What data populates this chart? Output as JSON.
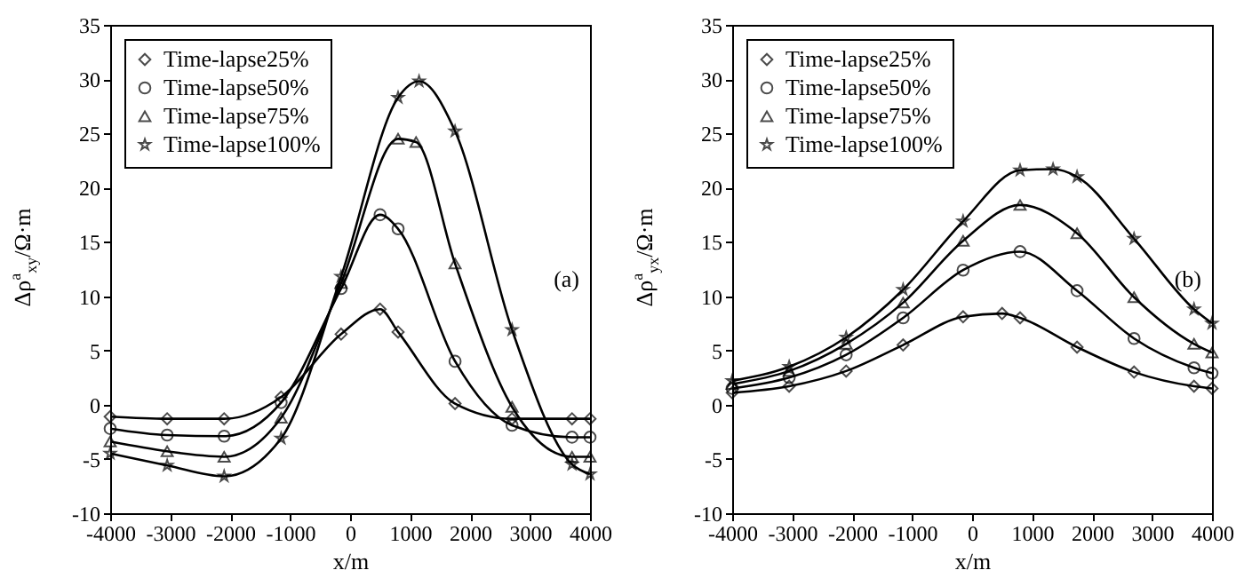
{
  "chart_data": [
    {
      "type": "line",
      "xlabel": "x/m",
      "ylabel": "Δρ$^{a}$$_{xy}$/Ω·m",
      "annotations": [
        "(a)"
      ],
      "xlim": [
        -4000,
        4000
      ],
      "xticks": [
        -4000,
        -3000,
        -2000,
        -1000,
        0,
        1000,
        2000,
        3000,
        4000
      ],
      "ylim": [
        -10,
        35
      ],
      "yticks": [
        -10,
        -5,
        0,
        5,
        10,
        15,
        20,
        25,
        30,
        35
      ],
      "grid": false,
      "legend": "top left",
      "line_style": "solid",
      "series": [
        {
          "name": "Time-lapse25%",
          "color": "#000000",
          "marker": "diamond",
          "x": [
            -4000,
            -3050,
            -2100,
            -1150,
            -150,
            500,
            800,
            1750,
            2700,
            3700,
            4000
          ],
          "values": [
            -1.1,
            -1.3,
            -1.3,
            0.7,
            6.5,
            8.8,
            6.7,
            0.1,
            -1.3,
            -1.3,
            -1.3
          ]
        },
        {
          "name": "Time-lapse50%",
          "color": "#000000",
          "marker": "circle",
          "x": [
            -4000,
            -3050,
            -2100,
            -1150,
            -150,
            500,
            800,
            1750,
            2700,
            3700,
            4000
          ],
          "values": [
            -2.2,
            -2.8,
            -2.9,
            0.2,
            10.7,
            17.5,
            16.2,
            4.0,
            -1.9,
            -3.0,
            -3.0
          ]
        },
        {
          "name": "Time-lapse75%",
          "color": "#000000",
          "marker": "triangle",
          "x": [
            -4000,
            -3050,
            -2100,
            -1150,
            -150,
            800,
            1100,
            1750,
            2700,
            3700,
            4000
          ],
          "values": [
            -3.4,
            -4.3,
            -4.8,
            -1.2,
            11.2,
            24.5,
            24.2,
            13.0,
            -0.2,
            -4.8,
            -4.8
          ]
        },
        {
          "name": "Time-lapse100%",
          "color": "#000000",
          "marker": "star",
          "x": [
            -4000,
            -3050,
            -2100,
            -1150,
            -150,
            800,
            1150,
            1750,
            2700,
            3700,
            4000
          ],
          "values": [
            -4.5,
            -5.6,
            -6.6,
            -3.1,
            11.8,
            28.3,
            29.8,
            25.2,
            6.9,
            -5.5,
            -6.4
          ]
        }
      ]
    },
    {
      "type": "line",
      "xlabel": "x/m",
      "ylabel": "Δρ$^{a}$$_{yx}$/Ω·m",
      "annotations": [
        "(b)"
      ],
      "xlim": [
        -4000,
        4000
      ],
      "xticks": [
        -4000,
        -3000,
        -2000,
        -1000,
        0,
        1000,
        2000,
        3000,
        4000
      ],
      "ylim": [
        -10,
        35
      ],
      "yticks": [
        -10,
        -5,
        0,
        5,
        10,
        15,
        20,
        25,
        30,
        35
      ],
      "grid": false,
      "legend": "top left",
      "line_style": "solid",
      "series": [
        {
          "name": "Time-lapse25%",
          "color": "#000000",
          "marker": "diamond",
          "x": [
            -4000,
            -3050,
            -2100,
            -1150,
            -150,
            500,
            800,
            1750,
            2700,
            3700,
            4000
          ],
          "values": [
            1.1,
            1.7,
            3.1,
            5.5,
            8.1,
            8.4,
            8.0,
            5.3,
            3.0,
            1.7,
            1.5
          ]
        },
        {
          "name": "Time-lapse50%",
          "color": "#000000",
          "marker": "circle",
          "x": [
            -4000,
            -3050,
            -2100,
            -1150,
            -150,
            800,
            1750,
            2700,
            3700,
            4000
          ],
          "values": [
            1.5,
            2.5,
            4.6,
            8.0,
            12.4,
            14.1,
            10.5,
            6.1,
            3.4,
            2.9
          ]
        },
        {
          "name": "Time-lapse75%",
          "color": "#000000",
          "marker": "triangle",
          "x": [
            -4000,
            -3050,
            -2100,
            -1150,
            -150,
            800,
            1750,
            2700,
            3700,
            4000
          ],
          "values": [
            1.9,
            3.1,
            5.6,
            9.4,
            15.1,
            18.4,
            15.8,
            9.9,
            5.6,
            4.8
          ]
        },
        {
          "name": "Time-lapse100%",
          "color": "#000000",
          "marker": "star",
          "x": [
            -4000,
            -3050,
            -2100,
            -1150,
            -150,
            800,
            1350,
            1750,
            2700,
            3700,
            4000
          ],
          "values": [
            2.2,
            3.5,
            6.2,
            10.6,
            16.9,
            21.6,
            21.7,
            21.0,
            15.3,
            8.8,
            7.5
          ]
        }
      ]
    }
  ]
}
